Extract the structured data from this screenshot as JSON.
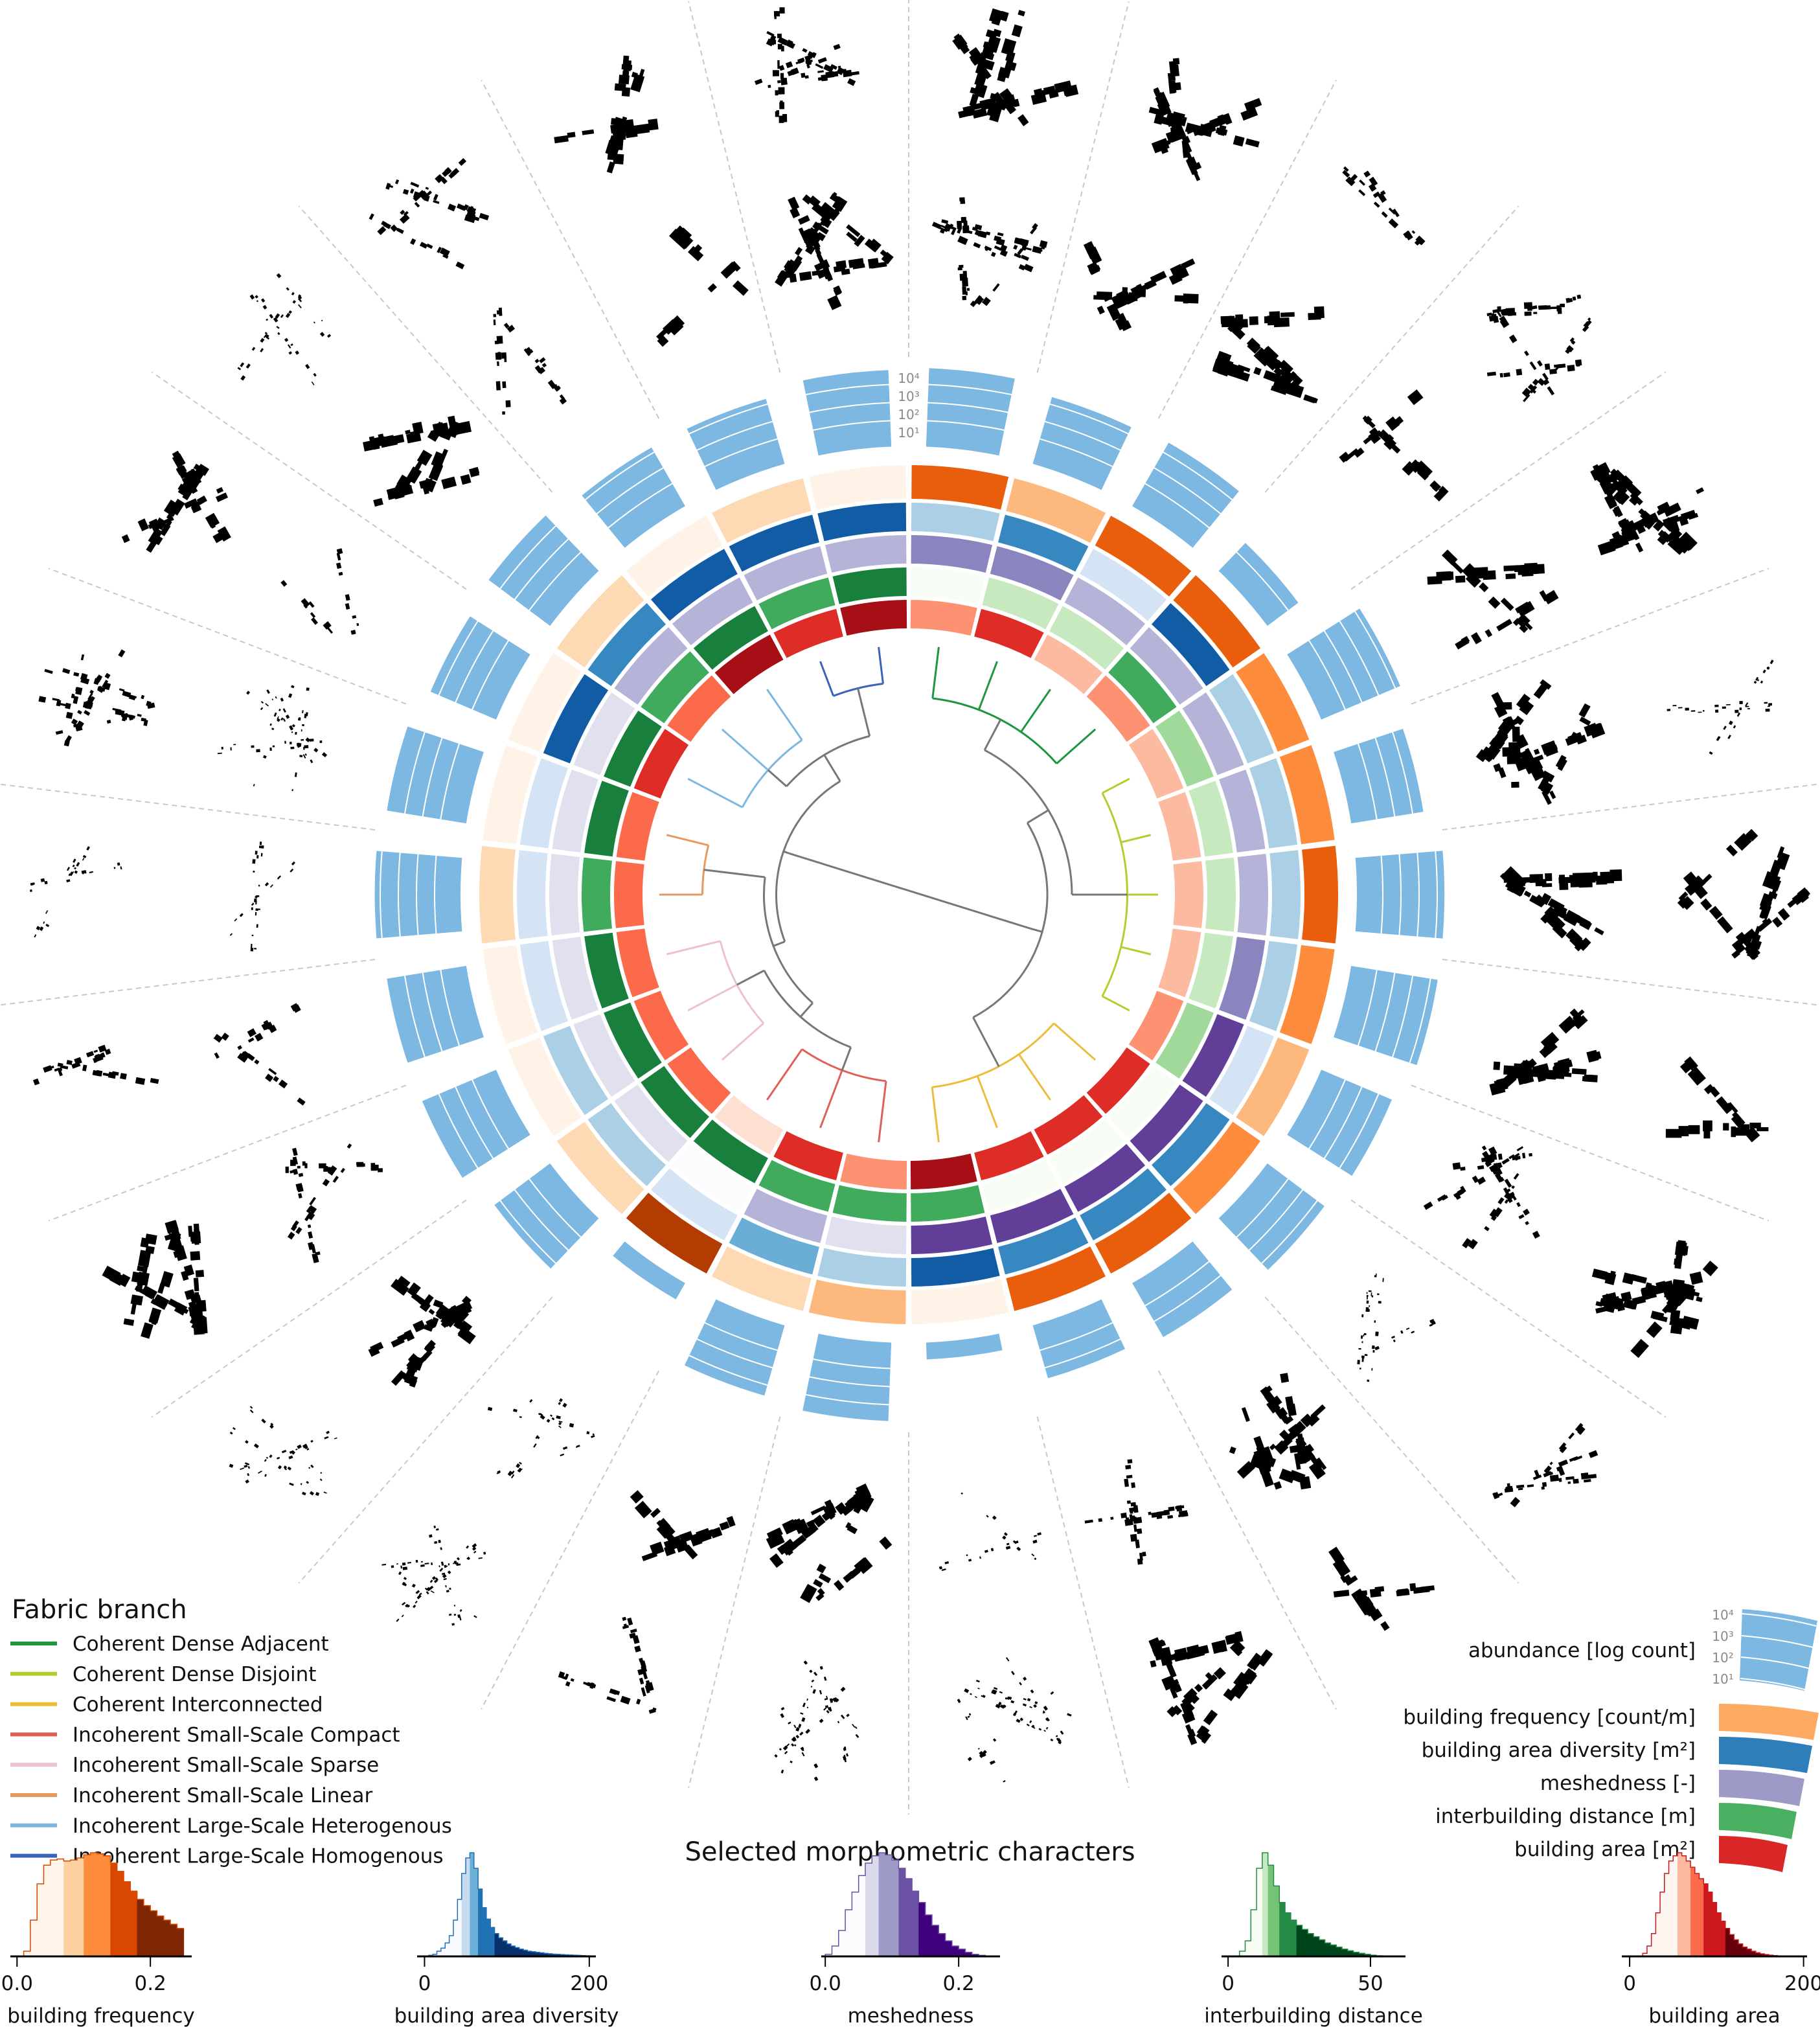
{
  "legend": {
    "title": "Fabric branch",
    "items": [
      {
        "label": "Coherent Dense Adjacent",
        "color": "#1e9640"
      },
      {
        "label": "Coherent Dense Disjoint",
        "color": "#b5cc2e"
      },
      {
        "label": "Coherent Interconnected",
        "color": "#ebbd3a"
      },
      {
        "label": "Incoherent Small-Scale Compact",
        "color": "#e06058"
      },
      {
        "label": "Incoherent Small-Scale Sparse",
        "color": "#edc0d5"
      },
      {
        "label": "Incoherent Small-Scale Linear",
        "color": "#e89a5e"
      },
      {
        "label": "Incoherent Large-Scale Heterogenous",
        "color": "#7db8e2"
      },
      {
        "label": "Incoherent Large-Scale Homogenous",
        "color": "#3a64b8"
      }
    ]
  },
  "characters_legend": {
    "abundance_label": "abundance [log count]",
    "abundance_ticks": [
      "10⁴",
      "10³",
      "10²",
      "10¹"
    ],
    "abundance_color": "#7db8e2",
    "items": [
      {
        "label": "building frequency [count/m]",
        "color": "#fdaa63"
      },
      {
        "label": "building area diversity [m²]",
        "color": "#2e7eba"
      },
      {
        "label": "meshedness [-]",
        "color": "#9e9ac8"
      },
      {
        "label": "interbuilding distance [m]",
        "color": "#4aaf60"
      },
      {
        "label": "building area [m²]",
        "color": "#d92626"
      }
    ]
  },
  "histograms_title": "Selected morphometric characters",
  "chart_data": [
    {
      "type": "radial-dendrogram",
      "title": "Fabric branch dendrogram with morphometric rings",
      "leaf_count": 26,
      "leaf_order": "clockwise from top",
      "leaf_branch": [
        0,
        0,
        0,
        0,
        1,
        1,
        1,
        1,
        1,
        2,
        2,
        2,
        2,
        3,
        3,
        3,
        4,
        4,
        4,
        5,
        5,
        6,
        6,
        6,
        7,
        7
      ],
      "abundance_log10": [
        3.9,
        3.4,
        3.6,
        1.7,
        4.3,
        3.6,
        4.4,
        4.4,
        3.8,
        3.5,
        3.0,
        2.6,
        0.5,
        3.9,
        3.6,
        0.6,
        3.4,
        4.0,
        4.0,
        4.3,
        4.0,
        3.5,
        3.8,
        3.3,
        3.3,
        3.8
      ],
      "abundance_ticks": [
        1,
        2,
        3,
        4
      ],
      "branch_heights": [
        0.42,
        0.25,
        0.45,
        0.5,
        0.45,
        0.35,
        0.5,
        0.3
      ],
      "merges": [
        {
          "children": [
            0,
            1
          ],
          "height": 0.7
        },
        {
          "children": [
            8,
            2
          ],
          "height": 0.9
        },
        {
          "children": [
            3,
            4
          ],
          "height": 0.7
        },
        {
          "children": [
            10,
            5
          ],
          "height": 0.85
        },
        {
          "children": [
            6,
            7
          ],
          "height": 0.7
        },
        {
          "children": [
            11,
            12
          ],
          "height": 0.95
        },
        {
          "children": [
            9,
            13
          ],
          "height": 1.0
        }
      ],
      "rings": [
        {
          "name": "building area",
          "palette": [
            "#fff5f0",
            "#fee0d2",
            "#fcbba1",
            "#fc9272",
            "#fb6a4a",
            "#de2d26",
            "#a50f15"
          ],
          "classes": [
            3,
            5,
            2,
            3,
            2,
            2,
            2,
            2,
            3,
            5,
            5,
            5,
            6,
            3,
            5,
            1,
            4,
            4,
            4,
            4,
            4,
            5,
            4,
            6,
            5,
            6
          ]
        },
        {
          "name": "interbuilding distance",
          "palette": [
            "#f7fcf5",
            "#e5f5e0",
            "#c7e9c0",
            "#a1d99b",
            "#74c476",
            "#41ab5d",
            "#18803c"
          ],
          "classes": [
            0,
            2,
            2,
            5,
            3,
            2,
            2,
            2,
            3,
            0,
            0,
            0,
            5,
            5,
            5,
            6,
            6,
            6,
            6,
            5,
            6,
            6,
            5,
            6,
            5,
            6
          ]
        },
        {
          "name": "meshedness",
          "palette": [
            "#fcfbfd",
            "#efedf5",
            "#e1e0ee",
            "#b5b4d8",
            "#8a85be",
            "#756bb1",
            "#613f99"
          ],
          "classes": [
            4,
            4,
            3,
            3,
            3,
            3,
            3,
            4,
            6,
            6,
            6,
            6,
            6,
            2,
            3,
            0,
            2,
            2,
            2,
            2,
            2,
            2,
            3,
            3,
            3,
            3
          ]
        },
        {
          "name": "building area diversity",
          "palette": [
            "#f7fbff",
            "#deebf7",
            "#d4e4f4",
            "#abd0e6",
            "#6aaed6",
            "#3787c0",
            "#115ca5"
          ],
          "classes": [
            3,
            5,
            2,
            6,
            3,
            3,
            3,
            3,
            2,
            5,
            5,
            5,
            6,
            3,
            4,
            2,
            3,
            3,
            2,
            2,
            2,
            6,
            5,
            6,
            6,
            6
          ]
        },
        {
          "name": "building frequency",
          "palette": [
            "#fff2e6",
            "#fee6ce",
            "#fdd9b4",
            "#fdb97d",
            "#fd8d3c",
            "#e95e0d",
            "#b33c03"
          ],
          "classes": [
            5,
            3,
            5,
            5,
            4,
            4,
            5,
            4,
            3,
            4,
            5,
            5,
            0,
            3,
            2,
            6,
            2,
            0,
            0,
            2,
            0,
            0,
            2,
            0,
            2,
            0
          ]
        }
      ]
    },
    {
      "type": "histogram",
      "xlabel": "building frequency",
      "xlim": [
        -0.01,
        0.262
      ],
      "ticks": [
        0.0,
        0.2
      ],
      "tick_labels": [
        "0.0",
        "0.2"
      ],
      "bin_start": 0.0,
      "bin_width": 0.01,
      "counts": [
        0,
        0.05,
        0.35,
        0.7,
        0.88,
        0.93,
        0.94,
        0.92,
        0.93,
        0.95,
        0.98,
        1.0,
        0.99,
        0.97,
        0.9,
        0.82,
        0.72,
        0.63,
        0.55,
        0.49,
        0.44,
        0.39,
        0.35,
        0.31,
        0.27
      ],
      "class_breaks": [
        0.067,
        0.102,
        0.137,
        0.177
      ],
      "class_colors": [
        "#fff5eb",
        "#fdd0a2",
        "#fd8d3c",
        "#d94801",
        "#7f2704"
      ],
      "outline": "#d94801"
    },
    {
      "type": "histogram",
      "xlabel": "building area diversity",
      "xlim": [
        -9,
        208
      ],
      "ticks": [
        0,
        200
      ],
      "tick_labels": [
        "0",
        "200"
      ],
      "bin_start": 0,
      "bin_width": 5,
      "counts": [
        0,
        0.01,
        0.02,
        0.05,
        0.08,
        0.13,
        0.2,
        0.35,
        0.55,
        0.8,
        0.95,
        1.0,
        0.85,
        0.65,
        0.47,
        0.36,
        0.28,
        0.22,
        0.18,
        0.15,
        0.12,
        0.1,
        0.085,
        0.07,
        0.06,
        0.05,
        0.045,
        0.04,
        0.035,
        0.03,
        0.026,
        0.022,
        0.02,
        0.018,
        0.016,
        0.014,
        0.012,
        0.01,
        0.008,
        0.006
      ],
      "class_breaks": [
        43,
        55,
        64,
        83
      ],
      "class_colors": [
        "#f7fbff",
        "#c6dbef",
        "#6baed6",
        "#2171b5",
        "#08306b"
      ],
      "outline": "#2171b5"
    },
    {
      "type": "histogram",
      "xlabel": "meshedness",
      "xlim": [
        -0.006,
        0.262
      ],
      "ticks": [
        0.0,
        0.2
      ],
      "tick_labels": [
        "0.0",
        "0.2"
      ],
      "bin_start": 0.0,
      "bin_width": 0.01,
      "counts": [
        0.02,
        0.1,
        0.25,
        0.45,
        0.62,
        0.78,
        0.9,
        0.97,
        1.0,
        0.98,
        0.93,
        0.85,
        0.75,
        0.63,
        0.52,
        0.4,
        0.3,
        0.22,
        0.15,
        0.1,
        0.07,
        0.04,
        0.02,
        0.01,
        0.005,
        0.002
      ],
      "class_breaks": [
        0.063,
        0.083,
        0.107,
        0.136
      ],
      "class_colors": [
        "#fcfbfd",
        "#dadaeb",
        "#9e9ac8",
        "#6a51a3",
        "#3f007d"
      ],
      "outline": "#6a51a3"
    },
    {
      "type": "histogram",
      "xlabel": "interbuilding distance",
      "xlim": [
        -2.3,
        62.3
      ],
      "ticks": [
        0,
        50
      ],
      "tick_labels": [
        "0",
        "50"
      ],
      "bin_start": 4,
      "bin_width": 2,
      "counts": [
        0.05,
        0.15,
        0.45,
        0.85,
        1.0,
        0.88,
        0.68,
        0.52,
        0.42,
        0.35,
        0.3,
        0.26,
        0.22,
        0.19,
        0.16,
        0.13,
        0.11,
        0.09,
        0.07,
        0.055,
        0.04,
        0.03,
        0.02,
        0.012,
        0.006,
        0.003
      ],
      "class_breaks": [
        11.3,
        14.7,
        18.4,
        24.9
      ],
      "class_colors": [
        "#f7fcf5",
        "#c7e9c0",
        "#74c476",
        "#238b45",
        "#00441b"
      ],
      "outline": "#238b45"
    },
    {
      "type": "histogram",
      "xlabel": "building area",
      "xlim": [
        -9,
        204
      ],
      "ticks": [
        0,
        200
      ],
      "tick_labels": [
        "0",
        "200"
      ],
      "bin_start": 15,
      "bin_width": 5,
      "counts": [
        0.03,
        0.1,
        0.22,
        0.42,
        0.62,
        0.8,
        0.92,
        0.97,
        1.0,
        0.97,
        0.92,
        0.86,
        0.8,
        0.75,
        0.7,
        0.62,
        0.52,
        0.42,
        0.34,
        0.27,
        0.21,
        0.16,
        0.12,
        0.09,
        0.07,
        0.05,
        0.035,
        0.025,
        0.018,
        0.012,
        0.008,
        0.005,
        0.003,
        0.002,
        0.001,
        0.001,
        0.001
      ],
      "class_breaks": [
        54,
        69,
        87,
        109
      ],
      "class_colors": [
        "#fff5f0",
        "#fcbba1",
        "#fb6a4a",
        "#cb181d",
        "#67000d"
      ],
      "outline": "#cb181d"
    }
  ]
}
